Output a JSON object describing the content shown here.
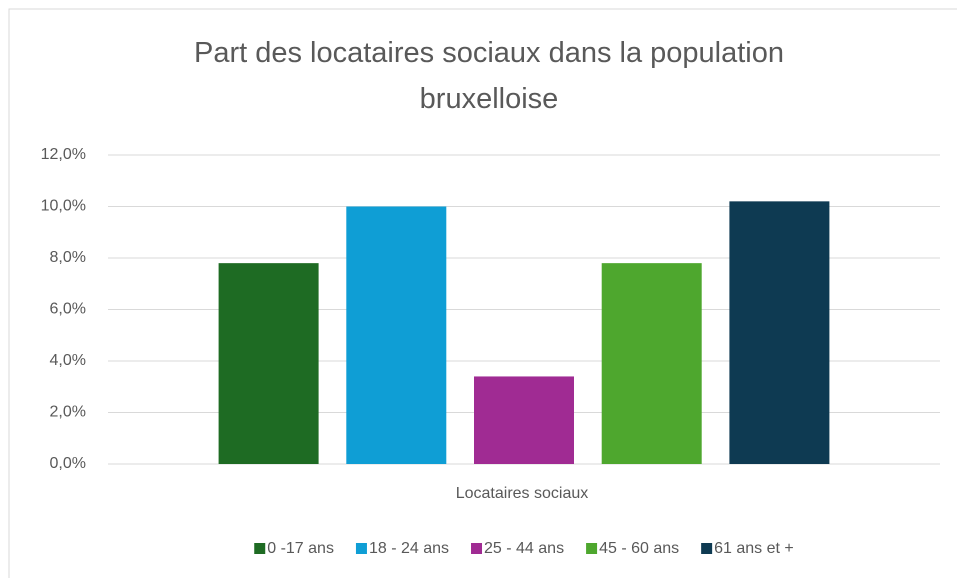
{
  "chart_data": {
    "type": "bar",
    "title": "Part des locataires sociaux dans la population bruxelloise",
    "categories": [
      "Locataires sociaux"
    ],
    "series": [
      {
        "name": "0 -17 ans",
        "color": "#1e6b23",
        "values": [
          7.8
        ]
      },
      {
        "name": "18 - 24 ans",
        "color": "#0f9ed5",
        "values": [
          10.0
        ]
      },
      {
        "name": "25 - 44 ans",
        "color": "#a02b93",
        "values": [
          3.4
        ]
      },
      {
        "name": "45 - 60 ans",
        "color": "#4ea72e",
        "values": [
          7.8
        ]
      },
      {
        "name": "61 ans et +",
        "color": "#0e3a52",
        "values": [
          10.2
        ]
      }
    ],
    "ylim": [
      0,
      12
    ],
    "yticks": [
      {
        "value": 0,
        "label": "0,0%"
      },
      {
        "value": 2,
        "label": "2,0%"
      },
      {
        "value": 4,
        "label": "4,0%"
      },
      {
        "value": 6,
        "label": "6,0%"
      },
      {
        "value": 8,
        "label": "8,0%"
      },
      {
        "value": 10,
        "label": "10,0%"
      },
      {
        "value": 12,
        "label": "12,0%"
      }
    ],
    "grid": true,
    "legend": "bottom"
  }
}
